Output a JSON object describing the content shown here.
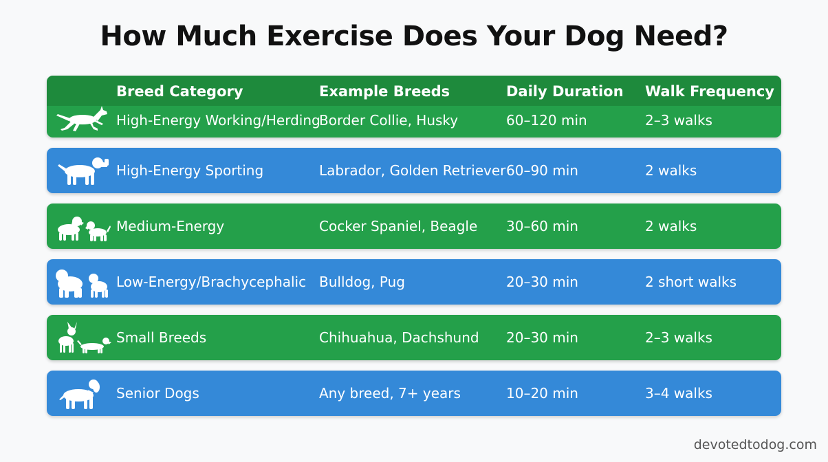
{
  "title": "How Much Exercise Does Your Dog Need?",
  "columns": [
    "Breed Category",
    "Example Breeds",
    "Daily Duration",
    "Walk Frequency"
  ],
  "rows": [
    {
      "category": "High-Energy Working/Herding",
      "breeds": "Border Collie, Husky",
      "duration": "60–120 min",
      "frequency": "2–3 walks",
      "color": "#24a04a",
      "icon": "running-dog-icon"
    },
    {
      "category": "High-Energy Sporting",
      "breeds": "Labrador, Golden Retriever",
      "duration": "60–90 min",
      "frequency": "2 walks",
      "color": "#3489d8",
      "icon": "retriever-dog-icon"
    },
    {
      "category": "Medium-Energy",
      "breeds": "Cocker Spaniel, Beagle",
      "duration": "30–60 min",
      "frequency": "2 walks",
      "color": "#24a04a",
      "icon": "spaniel-beagle-icon"
    },
    {
      "category": "Low-Energy/Brachycephalic",
      "breeds": "Bulldog, Pug",
      "duration": "20–30 min",
      "frequency": "2 short walks",
      "color": "#3489d8",
      "icon": "bulldog-pug-icon"
    },
    {
      "category": "Small Breeds",
      "breeds": "Chihuahua, Dachshund",
      "duration": "20–30 min",
      "frequency": "2–3 walks",
      "color": "#24a04a",
      "icon": "chihuahua-dachshund-icon"
    },
    {
      "category": "Senior Dogs",
      "breeds": "Any breed, 7+ years",
      "duration": "10–20 min",
      "frequency": "3–4 walks",
      "color": "#3489d8",
      "icon": "senior-dog-icon"
    }
  ],
  "footer": "devotedtodog.com"
}
